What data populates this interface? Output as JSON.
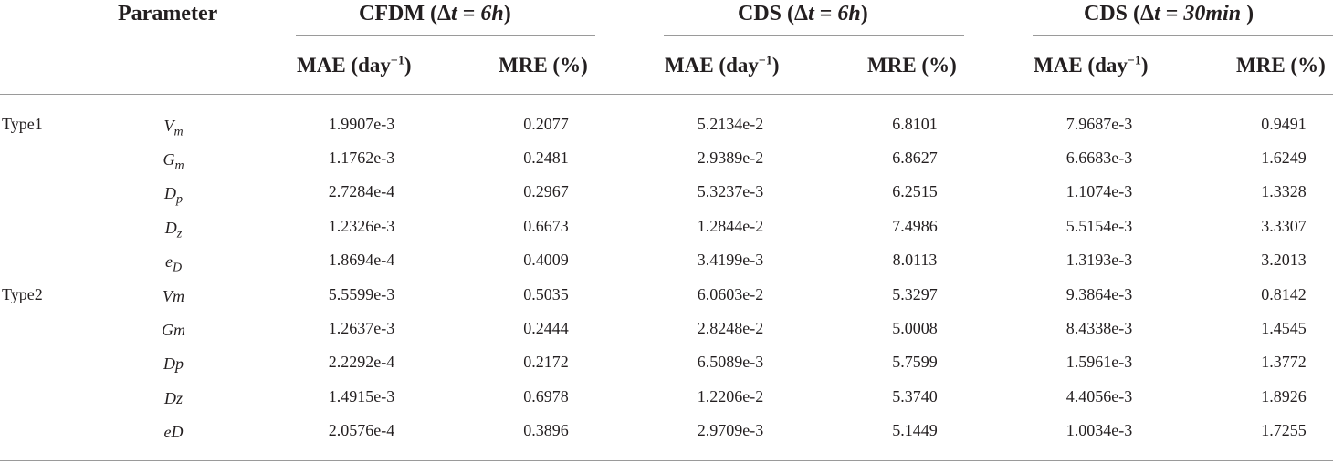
{
  "header": {
    "parameter": "Parameter",
    "groups": [
      {
        "pre": "CFDM (",
        "post": ")",
        "dt": "Δ",
        "t": "t",
        "eq": " = ",
        "val": "6h"
      },
      {
        "pre": "CDS (",
        "post": ")",
        "dt": "Δ",
        "t": "t",
        "eq": " = ",
        "val": "6h"
      },
      {
        "pre": "CDS (",
        "post": " )",
        "dt": "Δ",
        "t": "t",
        "eq": " = ",
        "val": "30min"
      }
    ],
    "mae_label": "MAE (day",
    "mae_exp": "−1",
    "mae_close": ")",
    "mre_label": "MRE (%)"
  },
  "types": [
    "Type1",
    "Type2"
  ],
  "rows": [
    {
      "p": "V",
      "s": "m",
      "v": [
        "1.9907e-3",
        "0.2077",
        "5.2134e-2",
        "6.8101",
        "7.9687e-3",
        "0.9491"
      ]
    },
    {
      "p": "G",
      "s": "m",
      "v": [
        "1.1762e-3",
        "0.2481",
        "2.9389e-2",
        "6.8627",
        "6.6683e-3",
        "1.6249"
      ]
    },
    {
      "p": "D",
      "s": "p",
      "v": [
        "2.7284e-4",
        "0.2967",
        "5.3237e-3",
        "6.2515",
        "1.1074e-3",
        "1.3328"
      ]
    },
    {
      "p": "D",
      "s": "z",
      "v": [
        "1.2326e-3",
        "0.6673",
        "1.2844e-2",
        "7.4986",
        "5.5154e-3",
        "3.3307"
      ]
    },
    {
      "p": "e",
      "s": "D",
      "v": [
        "1.8694e-4",
        "0.4009",
        "3.4199e-3",
        "8.0113",
        "1.3193e-3",
        "3.2013"
      ]
    },
    {
      "p": "Vm",
      "s": "",
      "v": [
        "5.5599e-3",
        "0.5035",
        "6.0603e-2",
        "5.3297",
        "9.3864e-3",
        "0.8142"
      ]
    },
    {
      "p": "Gm",
      "s": "",
      "v": [
        "1.2637e-3",
        "0.2444",
        "2.8248e-2",
        "5.0008",
        "8.4338e-3",
        "1.4545"
      ]
    },
    {
      "p": "Dp",
      "s": "",
      "v": [
        "2.2292e-4",
        "0.2172",
        "6.5089e-3",
        "5.7599",
        "1.5961e-3",
        "1.3772"
      ]
    },
    {
      "p": "Dz",
      "s": "",
      "v": [
        "1.4915e-3",
        "0.6978",
        "1.2206e-2",
        "5.3740",
        "4.4056e-3",
        "1.8926"
      ]
    },
    {
      "p": "eD",
      "s": "",
      "v": [
        "2.0576e-4",
        "0.3896",
        "2.9709e-3",
        "5.1449",
        "1.0034e-3",
        "1.7255"
      ]
    }
  ]
}
